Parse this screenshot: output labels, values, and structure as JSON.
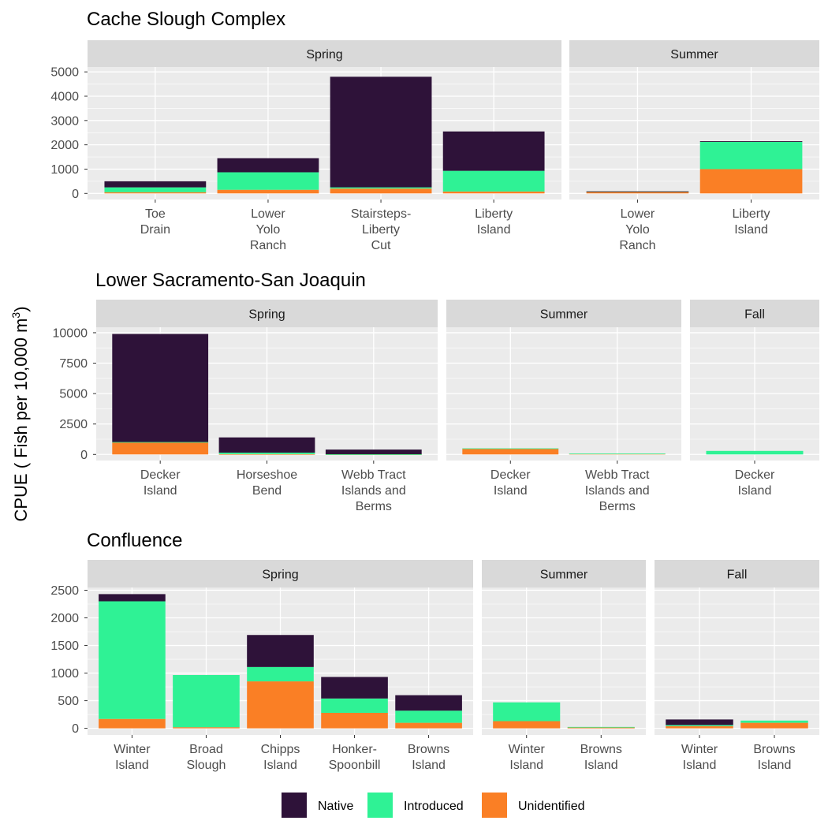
{
  "colors": {
    "Native": "#2e1239",
    "Introduced": "#2ff295",
    "Unidentified": "#fa7f25",
    "panel_bg": "#ebebeb",
    "strip_bg": "#d9d9d9",
    "grid": "#ffffff"
  },
  "y_axis_label": "CPUE ( Fish per 10,000 m",
  "y_axis_label_sup": "3",
  "y_axis_label_close": ")",
  "legend": [
    {
      "name": "Native",
      "color": "#2e1239"
    },
    {
      "name": "Introduced",
      "color": "#2ff295"
    },
    {
      "name": "Unidentified",
      "color": "#fa7f25"
    }
  ],
  "chart_data": [
    {
      "type": "bar",
      "stacked": true,
      "title": "Cache Slough Complex",
      "yticks": [
        0,
        1000,
        2000,
        3000,
        4000,
        5000
      ],
      "ylim": [
        -250,
        5200
      ],
      "facets": [
        {
          "season": "Spring",
          "categories": [
            [
              "Toe",
              "Drain"
            ],
            [
              "Lower",
              "Yolo",
              "Ranch"
            ],
            [
              "Stairsteps-",
              "Liberty",
              "Cut"
            ],
            [
              "Liberty",
              "Island"
            ]
          ],
          "series": [
            {
              "name": "Unidentified",
              "values": [
                50,
                150,
                200,
                80
              ]
            },
            {
              "name": "Introduced",
              "values": [
                200,
                720,
                50,
                850
              ]
            },
            {
              "name": "Native",
              "values": [
                250,
                580,
                4550,
                1620
              ]
            }
          ]
        },
        {
          "season": "Summer",
          "categories": [
            [
              "Lower",
              "Yolo",
              "Ranch"
            ],
            [
              "Liberty",
              "Island"
            ]
          ],
          "series": [
            {
              "name": "Unidentified",
              "values": [
                60,
                1000
              ]
            },
            {
              "name": "Introduced",
              "values": [
                20,
                1120
              ]
            },
            {
              "name": "Native",
              "values": [
                5,
                30
              ]
            }
          ]
        }
      ]
    },
    {
      "type": "bar",
      "stacked": true,
      "title": "Lower Sacramento-San Joaquin",
      "yticks": [
        0,
        2500,
        5000,
        7500,
        10000
      ],
      "ylim": [
        -500,
        10450
      ],
      "facets": [
        {
          "season": "Spring",
          "categories": [
            [
              "Decker",
              "Island"
            ],
            [
              "Horseshoe",
              "Bend"
            ],
            [
              "Webb Tract",
              "Islands and",
              "Berms"
            ]
          ],
          "series": [
            {
              "name": "Unidentified",
              "values": [
                1000,
                30,
                10
              ]
            },
            {
              "name": "Introduced",
              "values": [
                20,
                120,
                10
              ]
            },
            {
              "name": "Native",
              "values": [
                8880,
                1250,
                380
              ]
            }
          ]
        },
        {
          "season": "Summer",
          "categories": [
            [
              "Decker",
              "Island"
            ],
            [
              "Webb Tract",
              "Islands and",
              "Berms"
            ]
          ],
          "series": [
            {
              "name": "Unidentified",
              "values": [
                480,
                60
              ]
            },
            {
              "name": "Introduced",
              "values": [
                20,
                10
              ]
            },
            {
              "name": "Native",
              "values": [
                0,
                0
              ]
            }
          ]
        },
        {
          "season": "Fall",
          "categories": [
            [
              "Decker",
              "Island"
            ]
          ],
          "series": [
            {
              "name": "Unidentified",
              "values": [
                0
              ]
            },
            {
              "name": "Introduced",
              "values": [
                290
              ]
            },
            {
              "name": "Native",
              "values": [
                0
              ]
            }
          ]
        }
      ]
    },
    {
      "type": "bar",
      "stacked": true,
      "title": "Confluence",
      "yticks": [
        0,
        500,
        1000,
        1500,
        2000,
        2500
      ],
      "ylim": [
        -120,
        2550
      ],
      "facets": [
        {
          "season": "Spring",
          "categories": [
            [
              "Winter",
              "Island"
            ],
            [
              "Broad",
              "Slough"
            ],
            [
              "Chipps",
              "Island"
            ],
            [
              "Honker-",
              "Spoonbill"
            ],
            [
              "Browns",
              "Island"
            ]
          ],
          "series": [
            {
              "name": "Unidentified",
              "values": [
                170,
                20,
                850,
                280,
                100
              ]
            },
            {
              "name": "Introduced",
              "values": [
                2130,
                945,
                260,
                260,
                220
              ]
            },
            {
              "name": "Native",
              "values": [
                130,
                0,
                580,
                390,
                280
              ]
            }
          ]
        },
        {
          "season": "Summer",
          "categories": [
            [
              "Winter",
              "Island"
            ],
            [
              "Browns",
              "Island"
            ]
          ],
          "series": [
            {
              "name": "Unidentified",
              "values": [
                130,
                20
              ]
            },
            {
              "name": "Introduced",
              "values": [
                340,
                5
              ]
            },
            {
              "name": "Native",
              "values": [
                0,
                0
              ]
            }
          ]
        },
        {
          "season": "Fall",
          "categories": [
            [
              "Winter",
              "Island"
            ],
            [
              "Browns",
              "Island"
            ]
          ],
          "series": [
            {
              "name": "Unidentified",
              "values": [
                40,
                100
              ]
            },
            {
              "name": "Introduced",
              "values": [
                20,
                40
              ]
            },
            {
              "name": "Native",
              "values": [
                100,
                0
              ]
            }
          ]
        }
      ]
    }
  ]
}
